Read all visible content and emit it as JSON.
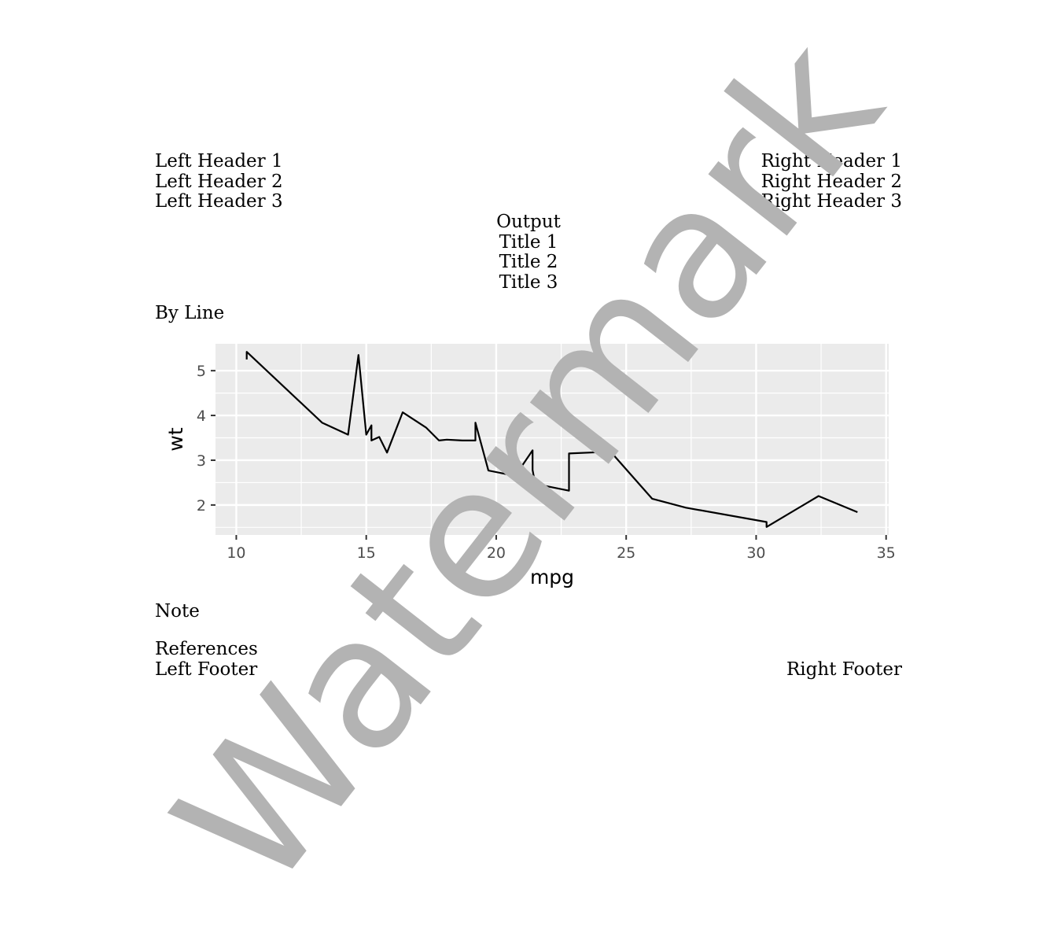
{
  "header": {
    "left": [
      "Left Header 1",
      "Left Header 2",
      "Left Header 3"
    ],
    "right": [
      "Right Header 1",
      "Right Header 2",
      "Right Header 3"
    ]
  },
  "titles": [
    "Output",
    "Title 1",
    "Title 2",
    "Title 3"
  ],
  "byline": "By Line",
  "note": "Note",
  "references": "References",
  "footer": {
    "left": "Left Footer",
    "right": "Right Footer"
  },
  "watermark": "Watermark",
  "chart_data": {
    "type": "line",
    "title": "",
    "xlabel": "mpg",
    "ylabel": "wt",
    "xlim": [
      9.2,
      35.1
    ],
    "ylim": [
      1.33,
      5.6
    ],
    "xticks": [
      10,
      15,
      20,
      25,
      30,
      35
    ],
    "yticks": [
      2,
      3,
      4,
      5
    ],
    "grid": true,
    "colors": {
      "panel": "#ebebeb",
      "grid": "#ffffff",
      "line": "#000000",
      "axis_text": "#4d4d4d"
    },
    "x": [
      10.4,
      10.4,
      13.3,
      14.3,
      14.7,
      15.0,
      15.2,
      15.2,
      15.5,
      15.8,
      16.4,
      17.3,
      17.8,
      18.1,
      18.7,
      19.2,
      19.2,
      19.7,
      21.0,
      21.0,
      21.4,
      21.4,
      21.5,
      22.8,
      22.8,
      24.4,
      26.0,
      27.3,
      30.4,
      30.4,
      32.4,
      33.9
    ],
    "y": [
      5.25,
      5.42,
      3.84,
      3.57,
      5.35,
      3.57,
      3.78,
      3.44,
      3.52,
      3.17,
      4.07,
      3.73,
      3.44,
      3.46,
      3.44,
      3.44,
      3.84,
      2.77,
      2.62,
      2.88,
      3.22,
      2.78,
      2.47,
      2.32,
      3.15,
      3.19,
      2.14,
      1.94,
      1.62,
      1.51,
      2.2,
      1.84
    ]
  }
}
